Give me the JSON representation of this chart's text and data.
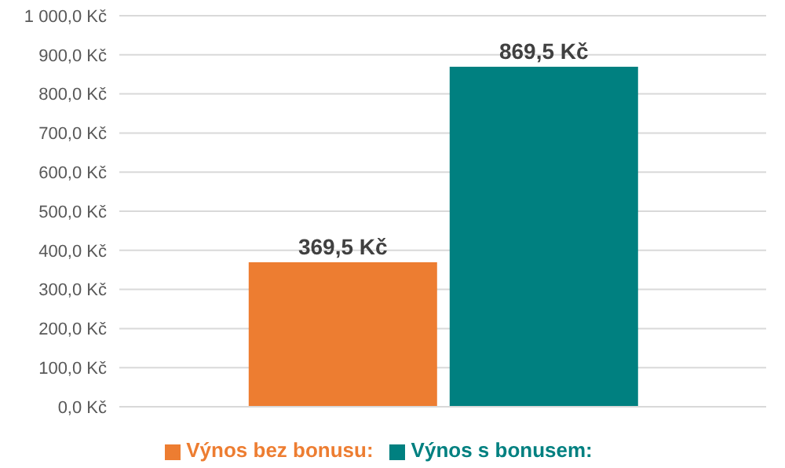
{
  "chart_data": {
    "type": "bar",
    "categories": [
      null
    ],
    "series": [
      {
        "name": "Výnos bez bonusu:",
        "color": "#ed7d31",
        "values": [
          369.5
        ],
        "value_labels": [
          "369,5 Kč"
        ]
      },
      {
        "name": "Výnos s bonusem:",
        "color": "#008080",
        "values": [
          869.5
        ],
        "value_labels": [
          "869,5 Kč"
        ]
      }
    ],
    "ylim": [
      0,
      1000
    ],
    "yticks": [
      {
        "value": 0,
        "label": "0,0 Kč"
      },
      {
        "value": 100,
        "label": "100,0 Kč"
      },
      {
        "value": 200,
        "label": "200,0 Kč"
      },
      {
        "value": 300,
        "label": "300,0 Kč"
      },
      {
        "value": 400,
        "label": "400,0 Kč"
      },
      {
        "value": 500,
        "label": "500,0 Kč"
      },
      {
        "value": 600,
        "label": "600,0 Kč"
      },
      {
        "value": 700,
        "label": "700,0 Kč"
      },
      {
        "value": 800,
        "label": "800,0 Kč"
      },
      {
        "value": 900,
        "label": "900,0 Kč"
      },
      {
        "value": 1000,
        "label": "1 000,0 Kč"
      }
    ],
    "grid": "y",
    "legend": "bottom"
  }
}
